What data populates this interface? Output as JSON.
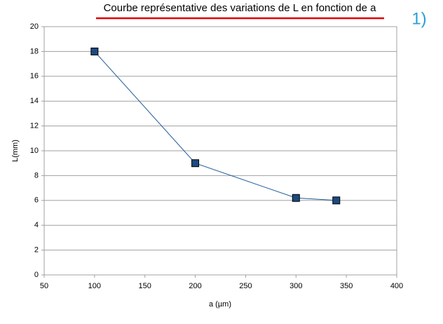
{
  "chart_data": {
    "type": "line",
    "title": "Courbe représentative des variations de L en fonction de a",
    "annotation": "1)",
    "x_label": "a (µm)",
    "y_label": "L(mm)",
    "x": [
      100,
      200,
      300,
      340
    ],
    "values": [
      18,
      9,
      6.2,
      6
    ],
    "color": "#1f5a9a",
    "xlim": [
      50,
      400
    ],
    "xticks": [
      50,
      100,
      150,
      200,
      250,
      300,
      350,
      400
    ],
    "ylim": [
      0,
      20
    ],
    "yticks": [
      0,
      2,
      4,
      6,
      8,
      10,
      12,
      14,
      16,
      18,
      20
    ],
    "grid": true
  }
}
